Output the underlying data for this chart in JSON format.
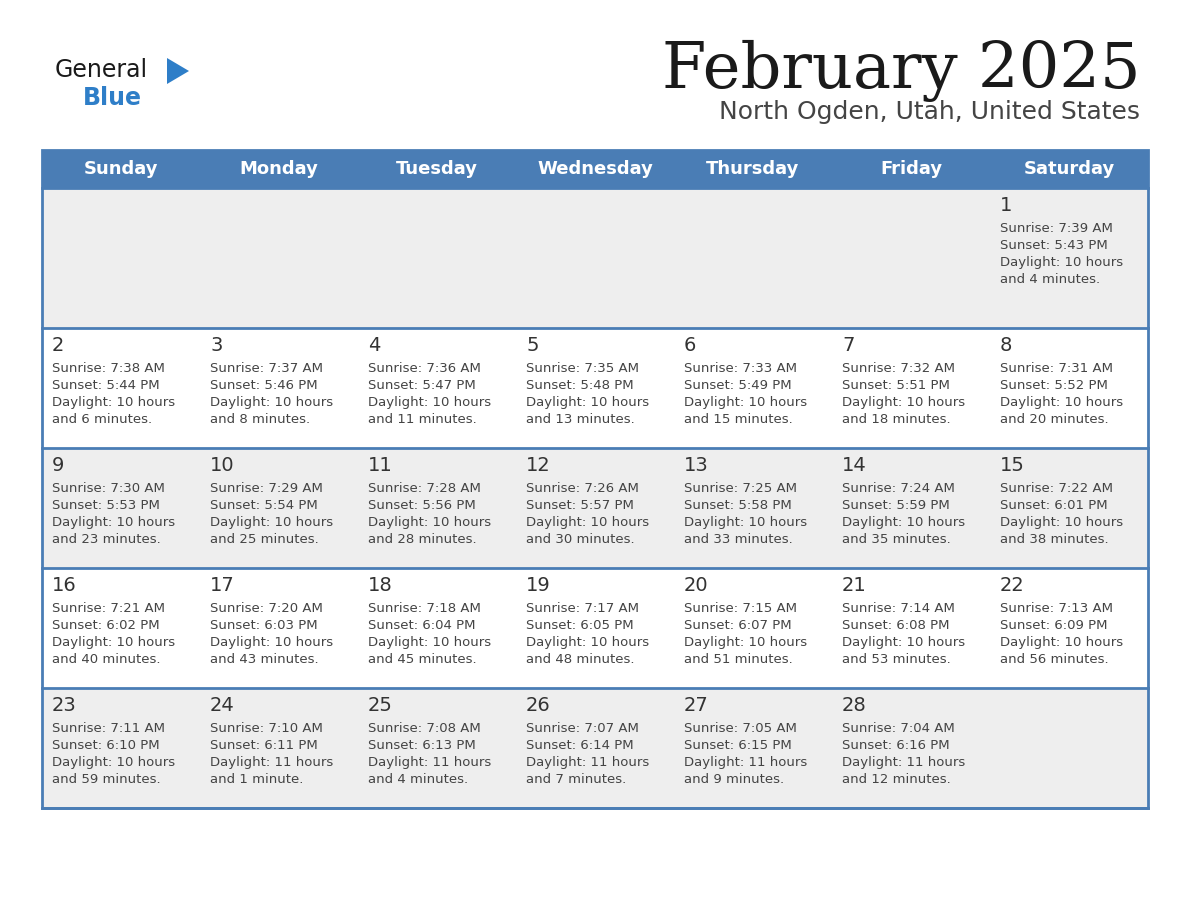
{
  "title": "February 2025",
  "subtitle": "North Ogden, Utah, United States",
  "header_bg_color": "#4a7db5",
  "header_text_color": "#ffffff",
  "day_names": [
    "Sunday",
    "Monday",
    "Tuesday",
    "Wednesday",
    "Thursday",
    "Friday",
    "Saturday"
  ],
  "title_color": "#1a1a1a",
  "subtitle_color": "#444444",
  "cell_bg_week0": "#eeeeee",
  "cell_bg_week1": "#f5f5f5",
  "cell_bg_week2": "#ffffff",
  "cell_bg_week3": "#f5f5f5",
  "cell_bg_week4": "#eeeeee",
  "day_num_color": "#333333",
  "info_color": "#444444",
  "line_color": "#4a7db5",
  "logo_general_color": "#1a1a1a",
  "logo_blue_color": "#2e7ec8",
  "logo_triangle_color": "#2e7ec8",
  "weeks": [
    [
      {
        "day": null,
        "sunrise": null,
        "sunset": null,
        "daylight": null
      },
      {
        "day": null,
        "sunrise": null,
        "sunset": null,
        "daylight": null
      },
      {
        "day": null,
        "sunrise": null,
        "sunset": null,
        "daylight": null
      },
      {
        "day": null,
        "sunrise": null,
        "sunset": null,
        "daylight": null
      },
      {
        "day": null,
        "sunrise": null,
        "sunset": null,
        "daylight": null
      },
      {
        "day": null,
        "sunrise": null,
        "sunset": null,
        "daylight": null
      },
      {
        "day": 1,
        "sunrise": "7:39 AM",
        "sunset": "5:43 PM",
        "daylight": "10 hours\nand 4 minutes."
      }
    ],
    [
      {
        "day": 2,
        "sunrise": "7:38 AM",
        "sunset": "5:44 PM",
        "daylight": "10 hours\nand 6 minutes."
      },
      {
        "day": 3,
        "sunrise": "7:37 AM",
        "sunset": "5:46 PM",
        "daylight": "10 hours\nand 8 minutes."
      },
      {
        "day": 4,
        "sunrise": "7:36 AM",
        "sunset": "5:47 PM",
        "daylight": "10 hours\nand 11 minutes."
      },
      {
        "day": 5,
        "sunrise": "7:35 AM",
        "sunset": "5:48 PM",
        "daylight": "10 hours\nand 13 minutes."
      },
      {
        "day": 6,
        "sunrise": "7:33 AM",
        "sunset": "5:49 PM",
        "daylight": "10 hours\nand 15 minutes."
      },
      {
        "day": 7,
        "sunrise": "7:32 AM",
        "sunset": "5:51 PM",
        "daylight": "10 hours\nand 18 minutes."
      },
      {
        "day": 8,
        "sunrise": "7:31 AM",
        "sunset": "5:52 PM",
        "daylight": "10 hours\nand 20 minutes."
      }
    ],
    [
      {
        "day": 9,
        "sunrise": "7:30 AM",
        "sunset": "5:53 PM",
        "daylight": "10 hours\nand 23 minutes."
      },
      {
        "day": 10,
        "sunrise": "7:29 AM",
        "sunset": "5:54 PM",
        "daylight": "10 hours\nand 25 minutes."
      },
      {
        "day": 11,
        "sunrise": "7:28 AM",
        "sunset": "5:56 PM",
        "daylight": "10 hours\nand 28 minutes."
      },
      {
        "day": 12,
        "sunrise": "7:26 AM",
        "sunset": "5:57 PM",
        "daylight": "10 hours\nand 30 minutes."
      },
      {
        "day": 13,
        "sunrise": "7:25 AM",
        "sunset": "5:58 PM",
        "daylight": "10 hours\nand 33 minutes."
      },
      {
        "day": 14,
        "sunrise": "7:24 AM",
        "sunset": "5:59 PM",
        "daylight": "10 hours\nand 35 minutes."
      },
      {
        "day": 15,
        "sunrise": "7:22 AM",
        "sunset": "6:01 PM",
        "daylight": "10 hours\nand 38 minutes."
      }
    ],
    [
      {
        "day": 16,
        "sunrise": "7:21 AM",
        "sunset": "6:02 PM",
        "daylight": "10 hours\nand 40 minutes."
      },
      {
        "day": 17,
        "sunrise": "7:20 AM",
        "sunset": "6:03 PM",
        "daylight": "10 hours\nand 43 minutes."
      },
      {
        "day": 18,
        "sunrise": "7:18 AM",
        "sunset": "6:04 PM",
        "daylight": "10 hours\nand 45 minutes."
      },
      {
        "day": 19,
        "sunrise": "7:17 AM",
        "sunset": "6:05 PM",
        "daylight": "10 hours\nand 48 minutes."
      },
      {
        "day": 20,
        "sunrise": "7:15 AM",
        "sunset": "6:07 PM",
        "daylight": "10 hours\nand 51 minutes."
      },
      {
        "day": 21,
        "sunrise": "7:14 AM",
        "sunset": "6:08 PM",
        "daylight": "10 hours\nand 53 minutes."
      },
      {
        "day": 22,
        "sunrise": "7:13 AM",
        "sunset": "6:09 PM",
        "daylight": "10 hours\nand 56 minutes."
      }
    ],
    [
      {
        "day": 23,
        "sunrise": "7:11 AM",
        "sunset": "6:10 PM",
        "daylight": "10 hours\nand 59 minutes."
      },
      {
        "day": 24,
        "sunrise": "7:10 AM",
        "sunset": "6:11 PM",
        "daylight": "11 hours\nand 1 minute."
      },
      {
        "day": 25,
        "sunrise": "7:08 AM",
        "sunset": "6:13 PM",
        "daylight": "11 hours\nand 4 minutes."
      },
      {
        "day": 26,
        "sunrise": "7:07 AM",
        "sunset": "6:14 PM",
        "daylight": "11 hours\nand 7 minutes."
      },
      {
        "day": 27,
        "sunrise": "7:05 AM",
        "sunset": "6:15 PM",
        "daylight": "11 hours\nand 9 minutes."
      },
      {
        "day": 28,
        "sunrise": "7:04 AM",
        "sunset": "6:16 PM",
        "daylight": "11 hours\nand 12 minutes."
      },
      {
        "day": null,
        "sunrise": null,
        "sunset": null,
        "daylight": null
      }
    ]
  ],
  "week_bg_colors": [
    "#eeeeee",
    "#ffffff",
    "#eeeeee",
    "#ffffff",
    "#eeeeee"
  ]
}
